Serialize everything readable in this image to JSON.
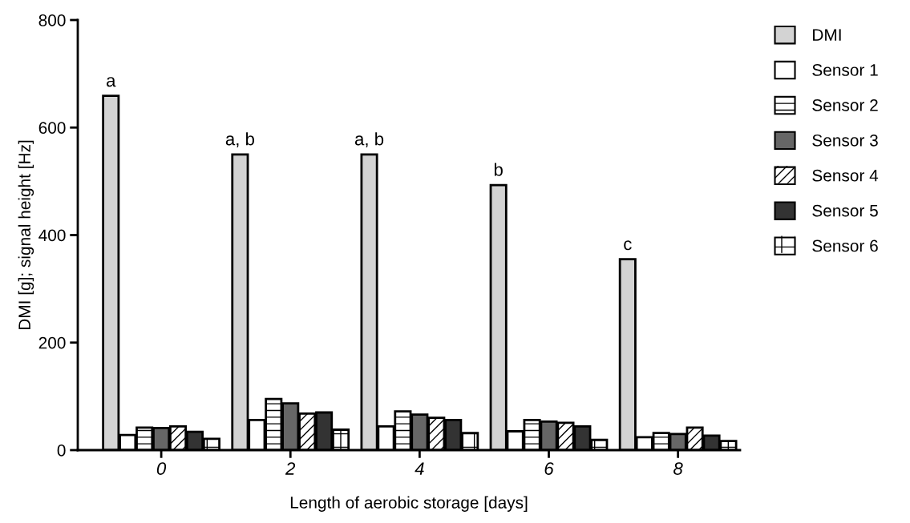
{
  "chart_data": {
    "type": "bar",
    "xlabel": "Length of aerobic storage [days]",
    "ylabel": "DMI [g]; signal height [Hz]",
    "categories": [
      "0",
      "2",
      "4",
      "6",
      "8"
    ],
    "series": [
      {
        "name": "DMI",
        "color": "#d3d3d3",
        "values": [
          659,
          550,
          550,
          493,
          355
        ]
      },
      {
        "name": "Sensor 1",
        "color": "#ffffff",
        "values": [
          28,
          56,
          44,
          35,
          24
        ]
      },
      {
        "name": "Sensor 2",
        "color": "#ffffff",
        "values": [
          42,
          95,
          72,
          56,
          32
        ]
      },
      {
        "name": "Sensor 3",
        "color": "#666666",
        "values": [
          41,
          87,
          66,
          53,
          30
        ]
      },
      {
        "name": "Sensor 4",
        "color": "#ffffff",
        "values": [
          44,
          68,
          60,
          51,
          42
        ]
      },
      {
        "name": "Sensor 5",
        "color": "#333333",
        "values": [
          34,
          70,
          56,
          44,
          27
        ]
      },
      {
        "name": "Sensor 6",
        "color": "#ffffff",
        "values": [
          21,
          38,
          32,
          19,
          17
        ]
      }
    ],
    "ylim": [
      0,
      800
    ],
    "yticks": [
      0,
      200,
      400,
      600,
      800
    ],
    "grid": false,
    "legend": "right",
    "annotations": [
      "a",
      "a, b",
      "a, b",
      "b",
      "c"
    ]
  }
}
